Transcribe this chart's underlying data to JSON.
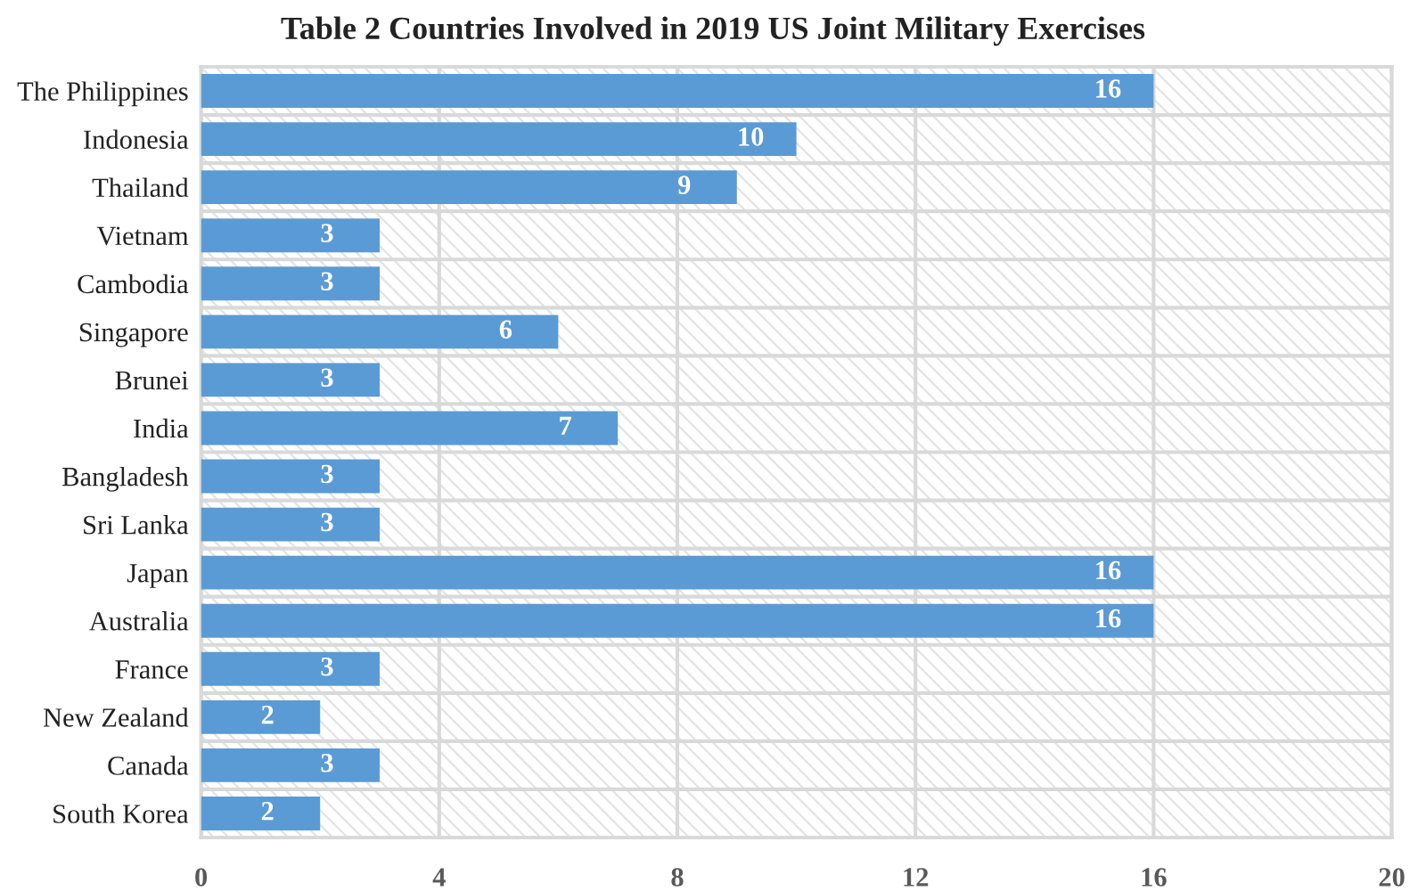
{
  "chart_data": {
    "type": "bar",
    "orientation": "horizontal",
    "title": "Table 2 Countries Involved in 2019 US Joint Military Exercises",
    "categories": [
      "The Philippines",
      "Indonesia",
      "Thailand",
      "Vietnam",
      "Cambodia",
      "Singapore",
      "Brunei",
      "India",
      "Bangladesh",
      "Sri Lanka",
      "Japan",
      "Australia",
      "France",
      "New Zealand",
      "Canada",
      "South Korea"
    ],
    "values": [
      16,
      10,
      9,
      3,
      3,
      6,
      3,
      7,
      3,
      3,
      16,
      16,
      3,
      2,
      3,
      2
    ],
    "color": "#5b9bd5",
    "xlim": [
      0,
      20
    ],
    "xticks": [
      0,
      4,
      8,
      12,
      16,
      20
    ],
    "grid": true,
    "data_labels": true
  }
}
